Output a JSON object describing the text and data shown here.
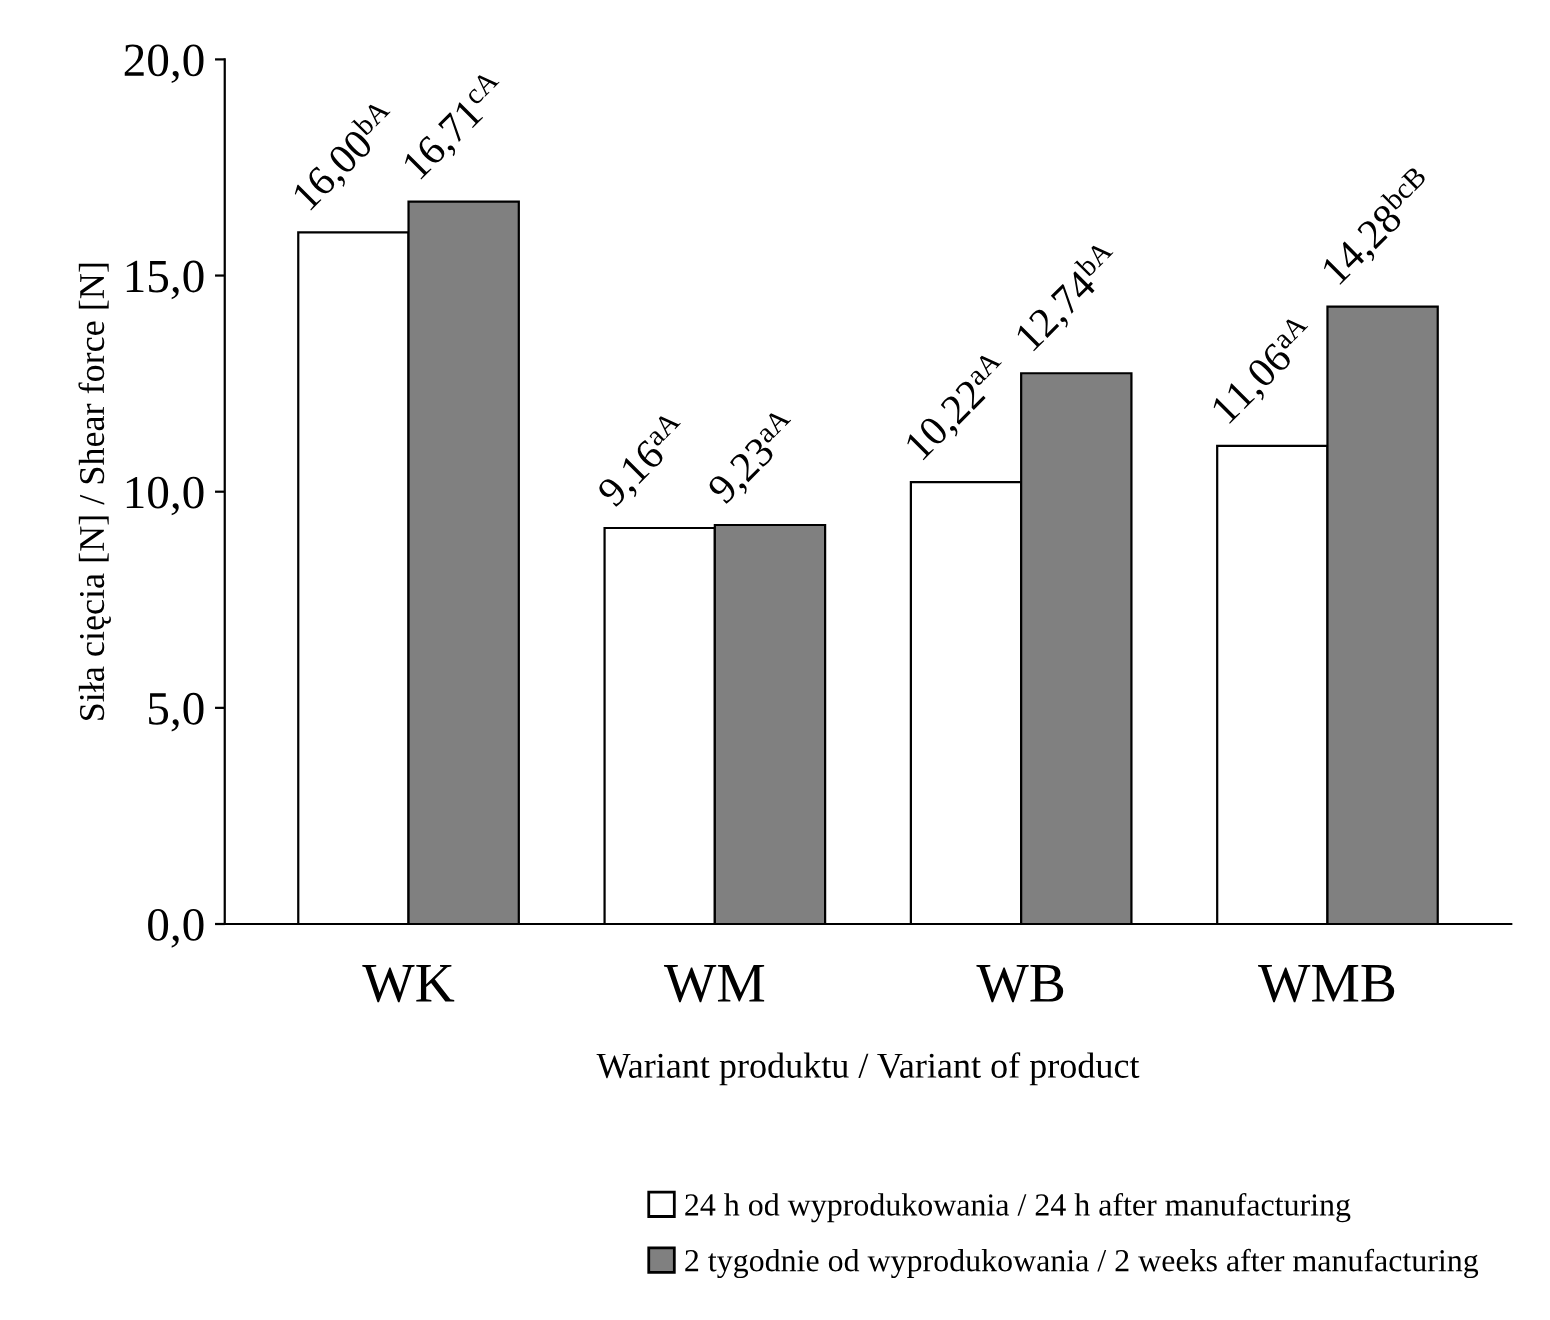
{
  "chart_data": {
    "type": "bar",
    "ylabel": "Siła cięcia [N] / Shear force [N]",
    "xlabel": "Wariant produktu / Variant of product",
    "categories": [
      "WK",
      "WM",
      "WB",
      "WMB"
    ],
    "series": [
      {
        "name": "24 h od wyprodukowania / 24 h after manufacturing",
        "color": "#ffffff",
        "values": [
          16.0,
          9.16,
          10.22,
          11.06
        ],
        "value_labels": [
          "16,00$^{bA}$",
          "9,16$^{aA}$",
          "10,22$^{aA}$",
          "11,06$^{aA}$"
        ]
      },
      {
        "name": "2 tygodnie od wyprodukowania / 2 weeks after manufacturing",
        "color": "#808080",
        "values": [
          16.71,
          9.23,
          12.74,
          14.28
        ],
        "value_labels": [
          "16,71$^{cA}$",
          "9,23$^{aA}$",
          "12,74$^{bA}$",
          "14,28$^{bcB}$"
        ]
      }
    ],
    "ylim": [
      0,
      20
    ],
    "yticks": [
      {
        "value": 0,
        "label": "0,0"
      },
      {
        "value": 5,
        "label": "5,0"
      },
      {
        "value": 10,
        "label": "10,0"
      },
      {
        "value": 15,
        "label": "15,0"
      },
      {
        "value": 20,
        "label": "20,0"
      }
    ],
    "grid": false,
    "legend": "bottom"
  }
}
